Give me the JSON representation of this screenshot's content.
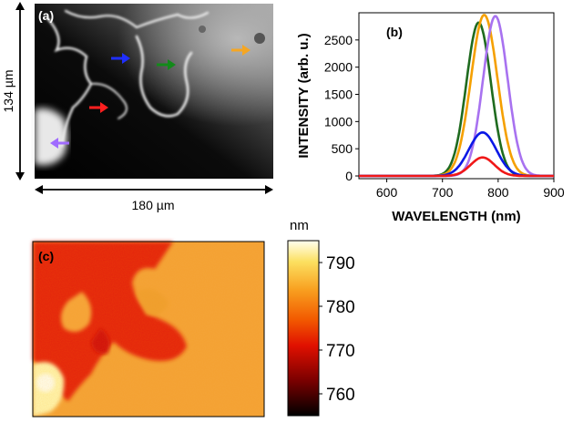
{
  "panel_a": {
    "label": "(a)",
    "height_label": "134 µm",
    "width_label": "180 µm",
    "arrow_colors": {
      "blue": "#1f2fff",
      "green": "#138a1a",
      "orange": "#f5a623",
      "red": "#ff1f1f",
      "purple": "#a06bff"
    }
  },
  "panel_c": {
    "label": "(c)",
    "colorbar_title": "nm",
    "colorbar_ticks": [
      "790",
      "780",
      "770",
      "760"
    ],
    "colorbar_range": [
      755,
      795
    ]
  },
  "chart_data": {
    "type": "line",
    "label": "(b)",
    "xlabel": "WAVELENGTH (nm)",
    "ylabel": "INTENSITY (arb. u.)",
    "xlim": [
      550,
      900
    ],
    "ylim": [
      -50,
      3000
    ],
    "xticks": [
      600,
      700,
      800,
      900
    ],
    "yticks": [
      0,
      500,
      1000,
      1500,
      2000,
      2500
    ],
    "series": [
      {
        "name": "green",
        "color": "#1f6b1f",
        "peak_nm": 765,
        "peak": 2820,
        "fwhm": 52
      },
      {
        "name": "orange",
        "color": "#f5a000",
        "peak_nm": 775,
        "peak": 2960,
        "fwhm": 56
      },
      {
        "name": "purple",
        "color": "#a872f0",
        "peak_nm": 795,
        "peak": 2940,
        "fwhm": 52
      },
      {
        "name": "blue",
        "color": "#0a18e6",
        "peak_nm": 772,
        "peak": 800,
        "fwhm": 58
      },
      {
        "name": "red",
        "color": "#f01818",
        "peak_nm": 772,
        "peak": 340,
        "fwhm": 50
      }
    ]
  }
}
